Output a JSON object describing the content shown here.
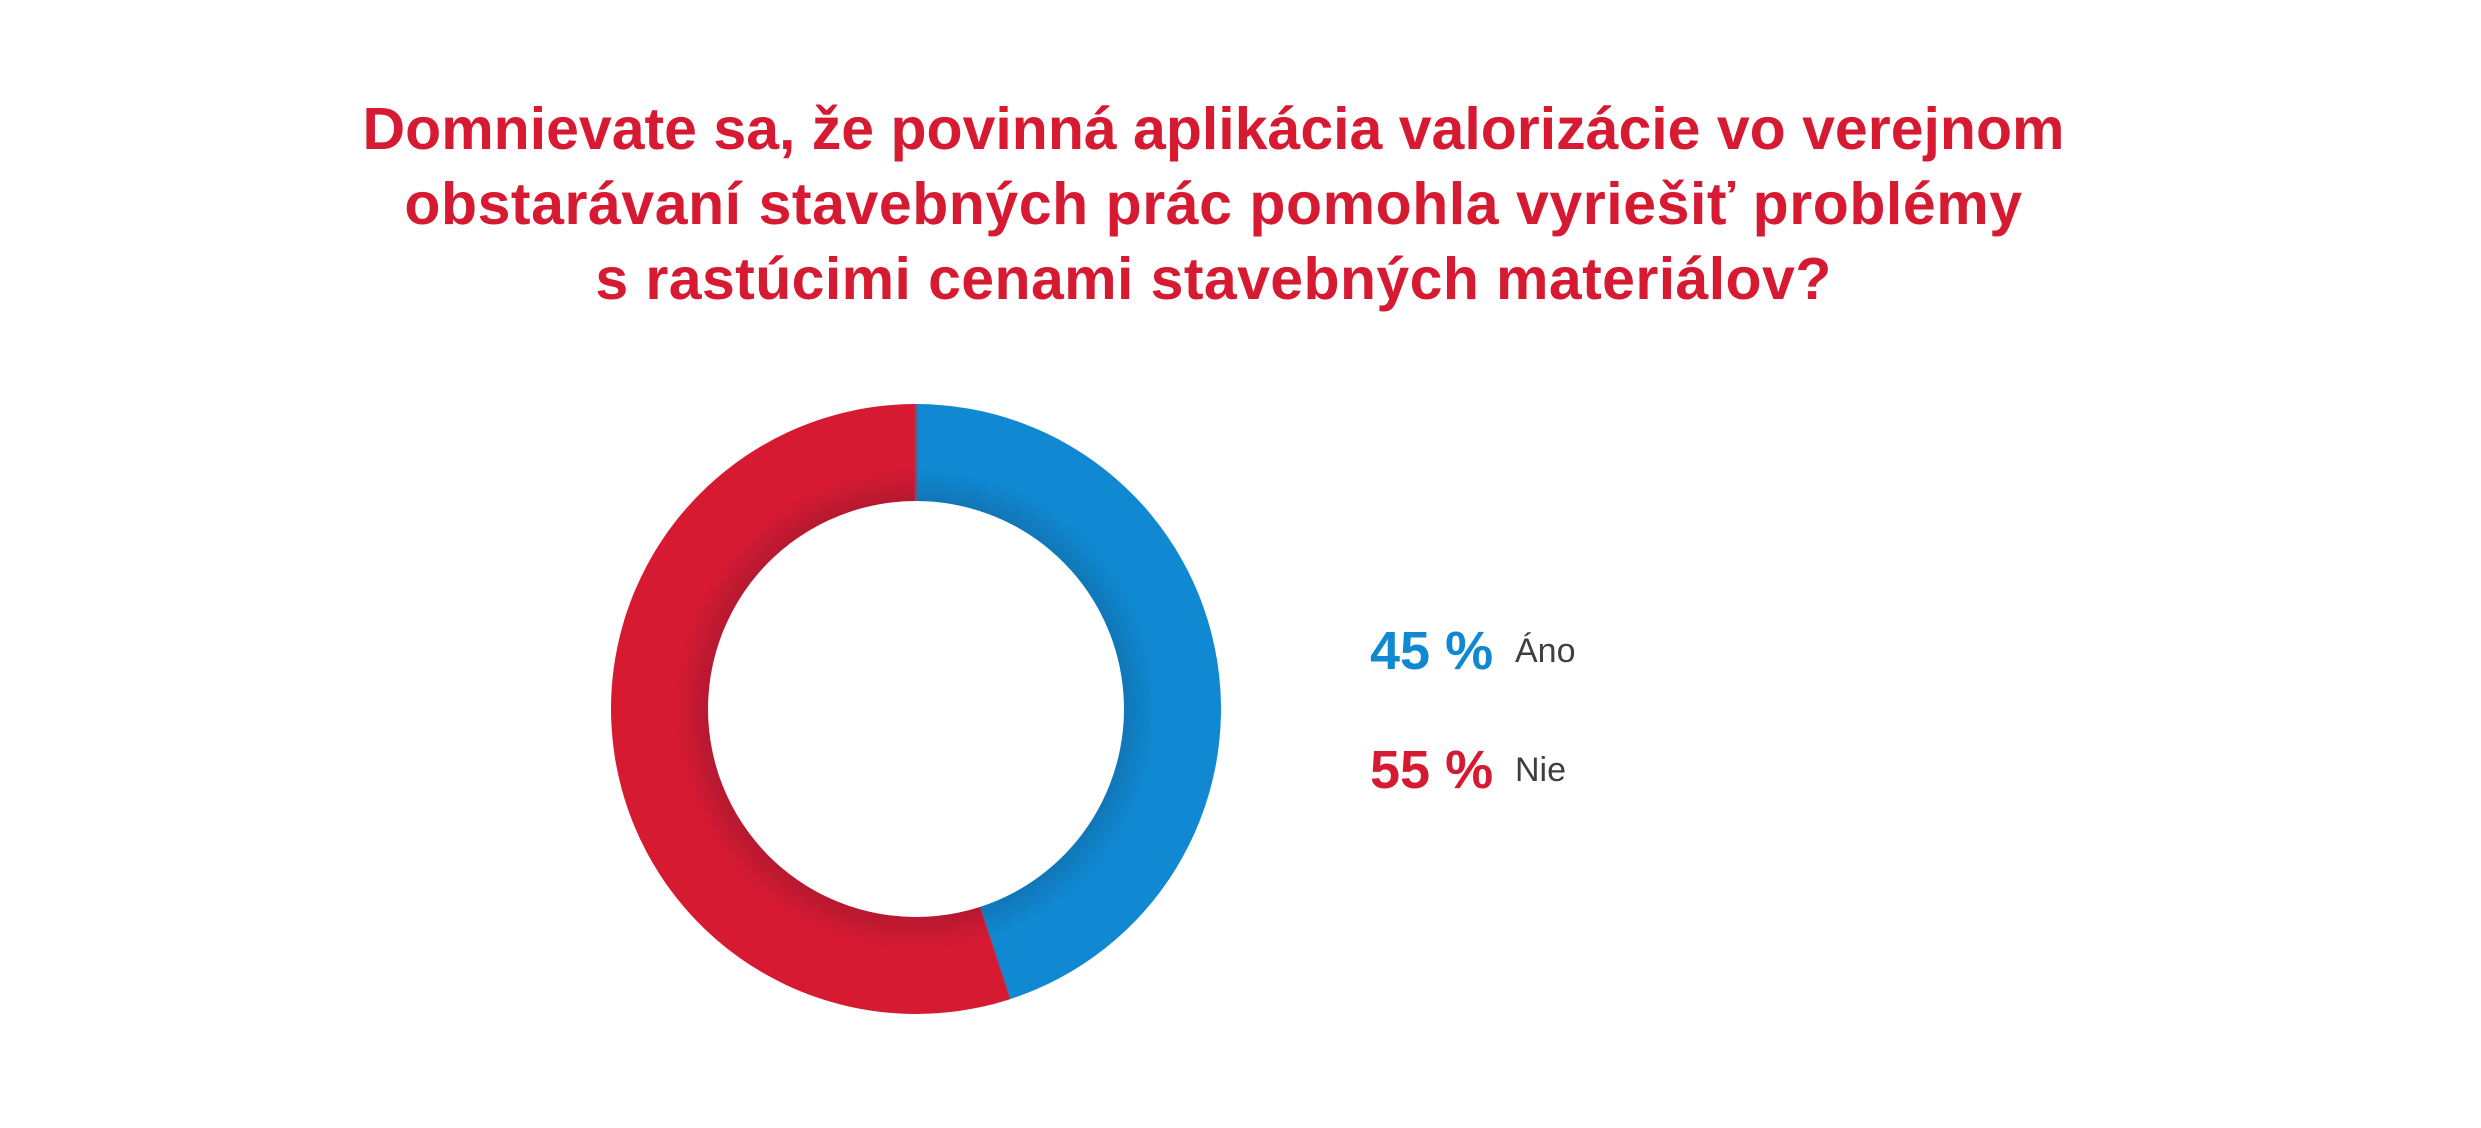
{
  "title": {
    "lines": [
      "Domnievate sa, že povinná aplikácia valorizácie vo verejnom",
      "obstarávaní stavebných prác pomohla vyriešiť problémy",
      "s rastúcimi cenami stavebných materiálov?"
    ],
    "color": "#d51a32"
  },
  "chart_data": {
    "type": "pie",
    "subtype": "donut",
    "title": "Domnievate sa, že povinná aplikácia valorizácie vo verejnom obstarávaní stavebných prác pomohla vyriešiť problémy s rastúcimi cenami stavebných materiálov?",
    "categories": [
      "Áno",
      "Nie"
    ],
    "values": [
      45,
      55
    ],
    "colors": [
      "#1089d2",
      "#d51a32"
    ],
    "start_angle_deg": 0,
    "clockwise": true,
    "legend_position": "right"
  },
  "legend": [
    {
      "value_label": "45 %",
      "label": "Áno",
      "color": "#1089d2"
    },
    {
      "value_label": "55 %",
      "label": "Nie",
      "color": "#d51a32"
    }
  ]
}
